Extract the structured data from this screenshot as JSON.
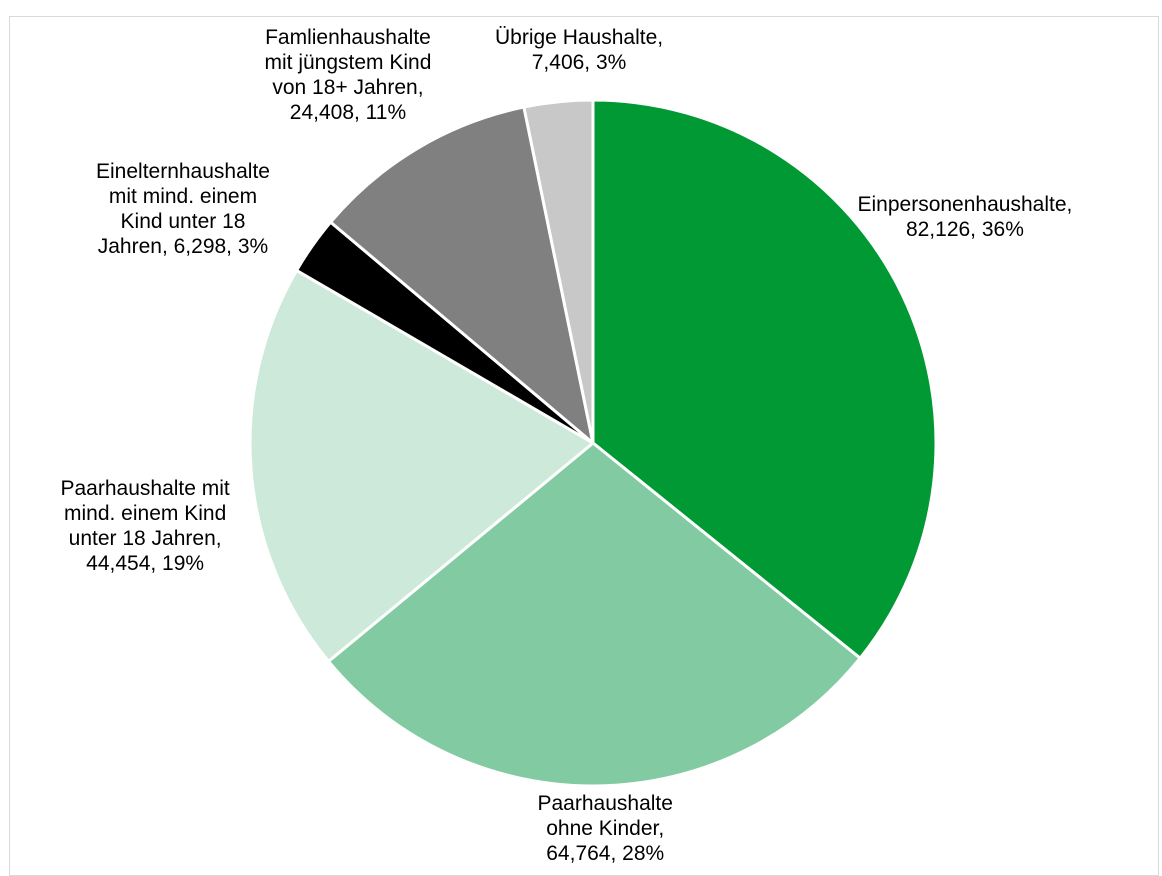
{
  "chart_data": {
    "type": "pie",
    "title": "",
    "slices": [
      {
        "label_lines": [
          "Einpersonenhaushalte,",
          "82,126, 36%"
        ],
        "name": "Einpersonenhaushalte",
        "value": 82126,
        "percent": 36,
        "color": "#009933"
      },
      {
        "label_lines": [
          "Paarhaushalte",
          "ohne Kinder,",
          "64,764, 28%"
        ],
        "name": "Paarhaushalte ohne Kinder",
        "value": 64764,
        "percent": 28,
        "color": "#82cba2"
      },
      {
        "label_lines": [
          "Paarhaushalte mit",
          "mind. einem Kind",
          "unter 18 Jahren,",
          "44,454, 19%"
        ],
        "name": "Paarhaushalte mit mind. einem Kind unter 18 Jahren",
        "value": 44454,
        "percent": 19,
        "color": "#cde9da"
      },
      {
        "label_lines": [
          "Einelternhaushalte",
          "mit mind. einem",
          "Kind unter 18",
          "Jahren, 6,298, 3%"
        ],
        "name": "Einelternhaushalte mit mind. einem Kind unter 18 Jahren",
        "value": 6298,
        "percent": 3,
        "color": "#000000"
      },
      {
        "label_lines": [
          "Famlienhaushalte",
          "mit jüngstem Kind",
          "von 18+ Jahren,",
          "24,408, 11%"
        ],
        "name": "Famlienhaushalte mit jüngstem Kind von 18+ Jahren",
        "value": 24408,
        "percent": 11,
        "color": "#808080"
      },
      {
        "label_lines": [
          "Übrige Haushalte,",
          "7,406, 3%"
        ],
        "name": "Übrige Haushalte",
        "value": 7406,
        "percent": 3,
        "color": "#c8c8c8"
      }
    ],
    "start_angle": "12 o'clock",
    "direction": "clockwise",
    "legend": "none"
  }
}
